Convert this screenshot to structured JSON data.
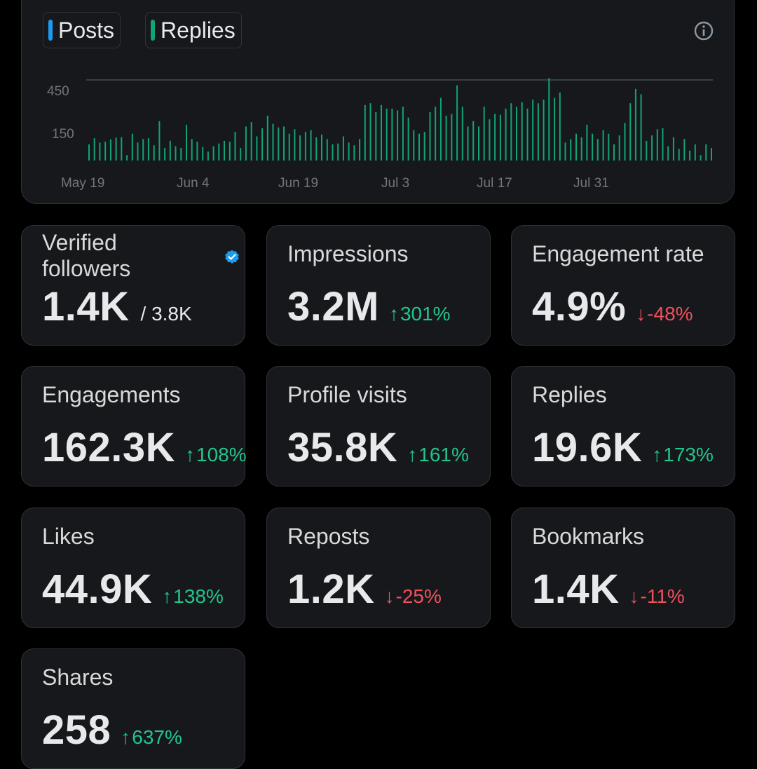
{
  "legend": {
    "posts_label": "Posts",
    "replies_label": "Replies",
    "posts_color": "#1d9bf0",
    "replies_color": "#0fa47a"
  },
  "info_icon": "info-icon",
  "chart_data": {
    "type": "bar",
    "series": [
      {
        "name": "Replies",
        "color": "#0fa47a"
      }
    ],
    "y_ticks": [
      "450",
      "150"
    ],
    "x_ticks": [
      "May 19",
      "Jun 4",
      "Jun 19",
      "Jul 3",
      "Jul 17",
      "Jul 31"
    ],
    "values": [
      90,
      125,
      100,
      105,
      118,
      128,
      130,
      30,
      150,
      100,
      120,
      125,
      85,
      220,
      70,
      110,
      80,
      70,
      200,
      120,
      105,
      75,
      50,
      80,
      95,
      110,
      105,
      160,
      70,
      190,
      215,
      135,
      180,
      250,
      205,
      185,
      190,
      150,
      175,
      140,
      160,
      170,
      130,
      145,
      120,
      90,
      95,
      135,
      100,
      85,
      120,
      310,
      320,
      270,
      310,
      290,
      290,
      280,
      300,
      240,
      170,
      150,
      160,
      270,
      300,
      350,
      250,
      260,
      420,
      300,
      190,
      220,
      190,
      300,
      230,
      260,
      255,
      290,
      320,
      300,
      325,
      290,
      340,
      320,
      340,
      460,
      350,
      380,
      100,
      120,
      150,
      130,
      200,
      150,
      120,
      170,
      150,
      90,
      140,
      210,
      320,
      400,
      370,
      110,
      140,
      175,
      180,
      80,
      130,
      65,
      120,
      55,
      90,
      30,
      90,
      70
    ],
    "ylim": [
      0,
      450
    ]
  },
  "stats": {
    "verified_followers": {
      "label": "Verified followers",
      "value": "1.4K",
      "sub": "/ 3.8K"
    },
    "impressions": {
      "label": "Impressions",
      "value": "3.2M",
      "change": "301%",
      "arrow": "↑"
    },
    "engagement_rate": {
      "label": "Engagement rate",
      "value": "4.9%",
      "change": "-48%",
      "arrow": "↓"
    },
    "engagements": {
      "label": "Engagements",
      "value": "162.3K",
      "change": "108%",
      "arrow": "↑"
    },
    "profile_visits": {
      "label": "Profile visits",
      "value": "35.8K",
      "change": "161%",
      "arrow": "↑"
    },
    "replies": {
      "label": "Replies",
      "value": "19.6K",
      "change": "173%",
      "arrow": "↑"
    },
    "likes": {
      "label": "Likes",
      "value": "44.9K",
      "change": "138%",
      "arrow": "↑"
    },
    "reposts": {
      "label": "Reposts",
      "value": "1.2K",
      "change": "-25%",
      "arrow": "↓"
    },
    "bookmarks": {
      "label": "Bookmarks",
      "value": "1.4K",
      "change": "-11%",
      "arrow": "↓"
    },
    "shares": {
      "label": "Shares",
      "value": "258",
      "change": "637%",
      "arrow": "↑"
    }
  }
}
